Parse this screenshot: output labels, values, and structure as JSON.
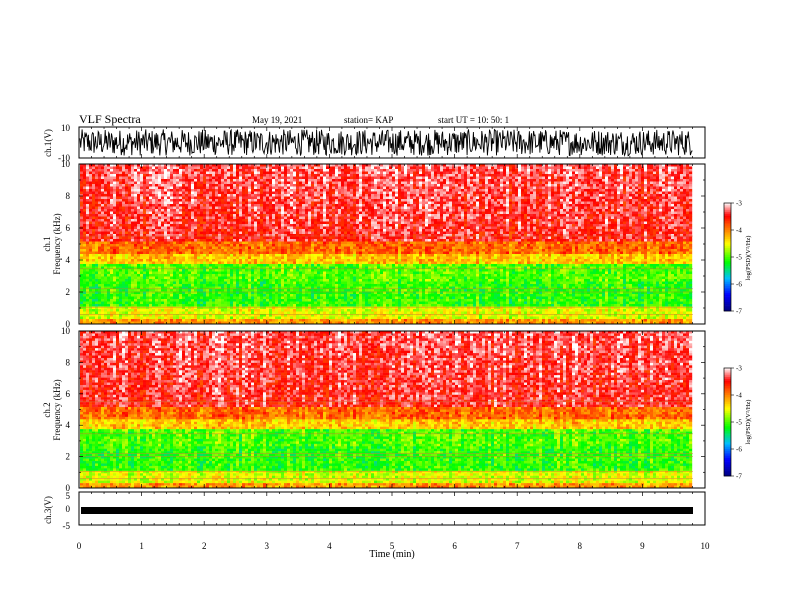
{
  "header": {
    "title": "VLF Spectra",
    "date": "May 19, 2021",
    "station": "station= KAP",
    "start": "start  UT  =   10: 50: 1"
  },
  "chart_data": [
    {
      "type": "line",
      "ylabel": "ch.1(V)",
      "ylim": [
        -10,
        10
      ],
      "yticks": [
        "10",
        "-10"
      ],
      "xlim": [
        0,
        10
      ],
      "description_series": "ch.1 waveform, noisy broadband signal mostly between -9 and 8 V"
    },
    {
      "type": "heatmap",
      "ylabel_lines": [
        "ch.1",
        "Frequency  (kHz)"
      ],
      "ylim": [
        0,
        10
      ],
      "yticks": [
        "0",
        "2",
        "4",
        "6",
        "8",
        "10"
      ],
      "xlim": [
        0,
        10
      ],
      "colorbar": {
        "label": "log(PSD)(V²/Hz)",
        "range": [
          -7,
          -3
        ],
        "ticks": [
          "-3",
          "-4",
          "-5",
          "-6",
          "-7"
        ]
      },
      "bands_khz": [
        {
          "from": 0.0,
          "to": 0.4,
          "level": "orange"
        },
        {
          "from": 0.4,
          "to": 1.2,
          "level": "yellow"
        },
        {
          "from": 1.2,
          "to": 2.6,
          "level": "green"
        },
        {
          "from": 2.6,
          "to": 3.8,
          "level": "green"
        },
        {
          "from": 3.8,
          "to": 5.2,
          "level": "yellow-red"
        },
        {
          "from": 5.2,
          "to": 10.0,
          "level": "red-white"
        }
      ]
    },
    {
      "type": "heatmap",
      "ylabel_lines": [
        "ch.2",
        "Frequency  (kHz)"
      ],
      "ylim": [
        0,
        10
      ],
      "yticks": [
        "0",
        "2",
        "4",
        "6",
        "8",
        "10"
      ],
      "xlim": [
        0,
        10
      ],
      "colorbar": {
        "label": "log(PSD)(V²/Hz)",
        "range": [
          -7,
          -3
        ],
        "ticks": [
          "-3",
          "-4",
          "-5",
          "-6",
          "-7"
        ]
      }
    },
    {
      "type": "line",
      "ylabel": "ch.3(V)",
      "ylim": [
        -5,
        5
      ],
      "yticks": [
        "5",
        "0",
        "-5"
      ],
      "xlim": [
        0,
        10
      ],
      "xlabel": "Time  (min)",
      "xticks": [
        "0",
        "1",
        "2",
        "3",
        "4",
        "5",
        "6",
        "7",
        "8",
        "9",
        "10"
      ],
      "description_series": "ch.3 near-constant dense signal around -1.5 V"
    }
  ],
  "colors": {
    "spectrum_scale": [
      "#000080",
      "#0000ff",
      "#00c0ff",
      "#00ff00",
      "#ffff00",
      "#ff8000",
      "#ff0000",
      "#ffffff"
    ]
  }
}
